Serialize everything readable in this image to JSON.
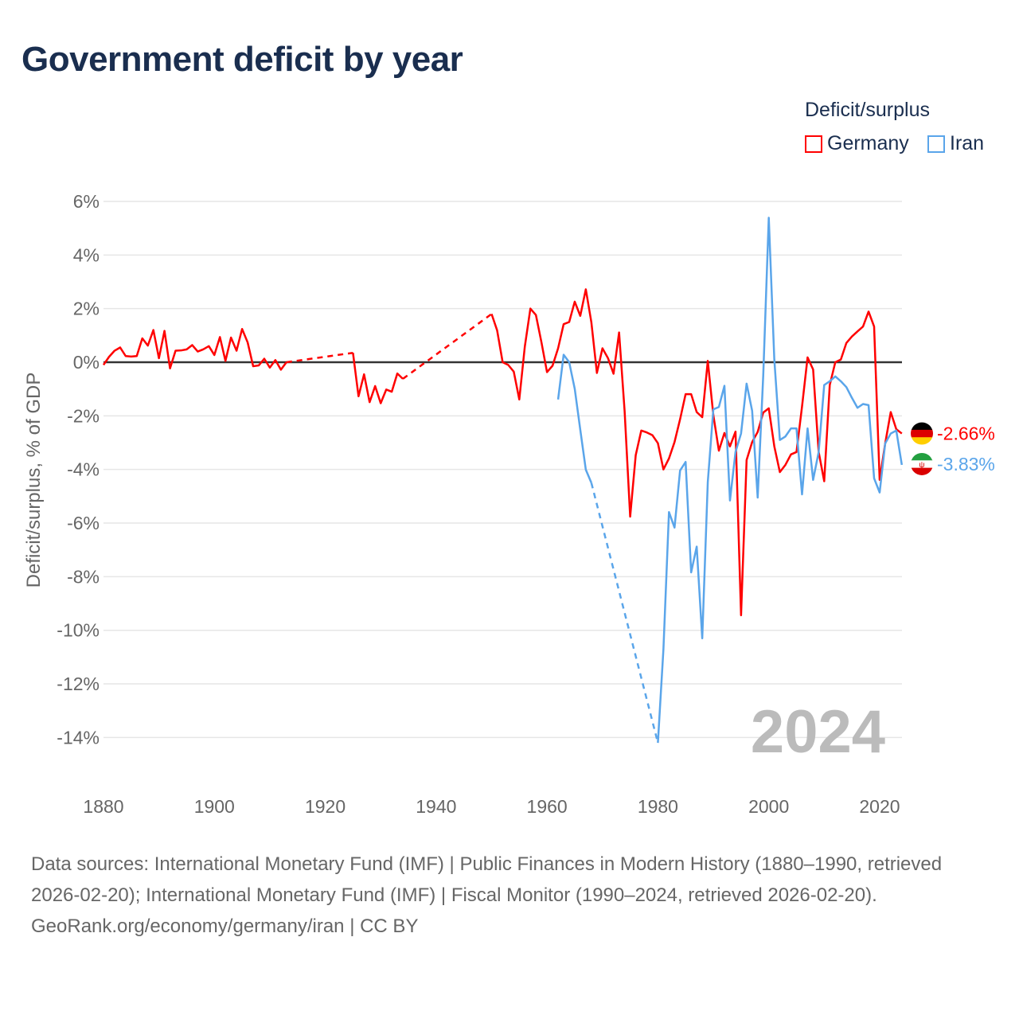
{
  "title": "Government deficit by year",
  "legend": {
    "title": "Deficit/surplus",
    "items": [
      {
        "name": "Germany",
        "color": "#ff0000"
      },
      {
        "name": "Iran",
        "color": "#5aa5ea"
      }
    ]
  },
  "watermark_year": "2024",
  "footer": {
    "sources": "Data sources: International Monetary Fund (IMF) | Public Finances in Modern History (1880–1990, retrieved 2026-02-20); International Monetary Fund (IMF) | Fiscal Monitor (1990–2024, retrieved 2026-02-20).",
    "credit": "GeoRank.org/economy/germany/iran | CC BY"
  },
  "chart_data": {
    "type": "line",
    "title": "Government deficit by year",
    "xlabel": "",
    "ylabel": "Deficit/surplus, % of GDP",
    "xlim": [
      1880,
      2024
    ],
    "ylim": [
      -14,
      6
    ],
    "x_ticks": [
      1880,
      1900,
      1920,
      1940,
      1960,
      1980,
      2000,
      2020
    ],
    "x_tick_labels": [
      "1880",
      "1900",
      "1920",
      "1940",
      "1960",
      "1980",
      "2000",
      "2020"
    ],
    "y_ticks": [
      6,
      4,
      2,
      0,
      -2,
      -4,
      -6,
      -8,
      -10,
      -12,
      -14
    ],
    "y_tick_labels": [
      "6%",
      "4%",
      "2%",
      "0%",
      "-2%",
      "-4%",
      "-6%",
      "-8%",
      "-10%",
      "-12%",
      "-14%"
    ],
    "grid": true,
    "legend_position": "top-right",
    "series": [
      {
        "name": "Germany",
        "color": "#ff0000",
        "end_label": "-2.66%",
        "points": [
          [
            1880,
            -0.1
          ],
          [
            1881,
            0.2
          ],
          [
            1882,
            0.43
          ],
          [
            1883,
            0.55
          ],
          [
            1884,
            0.23
          ],
          [
            1885,
            0.21
          ],
          [
            1886,
            0.23
          ],
          [
            1887,
            0.89
          ],
          [
            1888,
            0.62
          ],
          [
            1889,
            1.2
          ],
          [
            1890,
            0.15
          ],
          [
            1891,
            1.17
          ],
          [
            1892,
            -0.23
          ],
          [
            1893,
            0.43
          ],
          [
            1894,
            0.44
          ],
          [
            1895,
            0.48
          ],
          [
            1896,
            0.64
          ],
          [
            1897,
            0.4
          ],
          [
            1898,
            0.48
          ],
          [
            1899,
            0.6
          ],
          [
            1900,
            0.27
          ],
          [
            1901,
            0.94
          ],
          [
            1902,
            0.05
          ],
          [
            1903,
            0.92
          ],
          [
            1904,
            0.43
          ],
          [
            1905,
            1.24
          ],
          [
            1906,
            0.74
          ],
          [
            1907,
            -0.15
          ],
          [
            1908,
            -0.12
          ],
          [
            1909,
            0.13
          ],
          [
            1910,
            -0.2
          ],
          [
            1911,
            0.08
          ],
          [
            1912,
            -0.28
          ],
          [
            1913,
            0.0
          ],
          [
            1925,
            0.35
          ],
          [
            1926,
            -1.27
          ],
          [
            1927,
            -0.45
          ],
          [
            1928,
            -1.49
          ],
          [
            1929,
            -0.89
          ],
          [
            1930,
            -1.53
          ],
          [
            1931,
            -1.02
          ],
          [
            1932,
            -1.1
          ],
          [
            1933,
            -0.42
          ],
          [
            1934,
            -0.62
          ],
          [
            1950,
            1.8
          ],
          [
            1951,
            1.19
          ],
          [
            1952,
            0.0
          ],
          [
            1953,
            -0.1
          ],
          [
            1954,
            -0.35
          ],
          [
            1955,
            -1.39
          ],
          [
            1956,
            0.59
          ],
          [
            1957,
            2.0
          ],
          [
            1958,
            1.76
          ],
          [
            1959,
            0.74
          ],
          [
            1960,
            -0.37
          ],
          [
            1961,
            -0.13
          ],
          [
            1962,
            0.52
          ],
          [
            1963,
            1.42
          ],
          [
            1964,
            1.5
          ],
          [
            1965,
            2.26
          ],
          [
            1966,
            1.73
          ],
          [
            1967,
            2.72
          ],
          [
            1968,
            1.49
          ],
          [
            1969,
            -0.4
          ],
          [
            1970,
            0.52
          ],
          [
            1971,
            0.15
          ],
          [
            1972,
            -0.43
          ],
          [
            1973,
            1.11
          ],
          [
            1974,
            -1.83
          ],
          [
            1975,
            -5.76
          ],
          [
            1976,
            -3.47
          ],
          [
            1977,
            -2.55
          ],
          [
            1978,
            -2.62
          ],
          [
            1979,
            -2.72
          ],
          [
            1980,
            -3.02
          ],
          [
            1981,
            -4.0
          ],
          [
            1982,
            -3.59
          ],
          [
            1983,
            -2.98
          ],
          [
            1984,
            -2.13
          ],
          [
            1985,
            -1.19
          ],
          [
            1986,
            -1.19
          ],
          [
            1987,
            -1.86
          ],
          [
            1988,
            -2.05
          ],
          [
            1989,
            0.05
          ],
          [
            1990,
            -1.97
          ],
          [
            1991,
            -3.3
          ],
          [
            1992,
            -2.64
          ],
          [
            1993,
            -3.14
          ],
          [
            1994,
            -2.59
          ],
          [
            1995,
            -9.44
          ],
          [
            1996,
            -3.65
          ],
          [
            1997,
            -2.98
          ],
          [
            1998,
            -2.6
          ],
          [
            1999,
            -1.88
          ],
          [
            2000,
            -1.72
          ],
          [
            2001,
            -3.14
          ],
          [
            2002,
            -4.1
          ],
          [
            2003,
            -3.83
          ],
          [
            2004,
            -3.44
          ],
          [
            2005,
            -3.35
          ],
          [
            2006,
            -1.65
          ],
          [
            2007,
            0.18
          ],
          [
            2008,
            -0.27
          ],
          [
            2009,
            -3.35
          ],
          [
            2010,
            -4.44
          ],
          [
            2011,
            -0.85
          ],
          [
            2012,
            0.0
          ],
          [
            2013,
            0.1
          ],
          [
            2014,
            0.72
          ],
          [
            2015,
            0.96
          ],
          [
            2016,
            1.15
          ],
          [
            2017,
            1.33
          ],
          [
            2018,
            1.89
          ],
          [
            2019,
            1.33
          ],
          [
            2020,
            -4.39
          ],
          [
            2021,
            -3.03
          ],
          [
            2022,
            -1.86
          ],
          [
            2023,
            -2.5
          ],
          [
            2024,
            -2.66
          ]
        ]
      },
      {
        "name": "Iran",
        "color": "#5aa5ea",
        "end_label": "-3.83%",
        "points": [
          [
            1962,
            -1.39
          ],
          [
            1963,
            0.28
          ],
          [
            1964,
            0.0
          ],
          [
            1965,
            -0.99
          ],
          [
            1966,
            -2.52
          ],
          [
            1967,
            -4.01
          ],
          [
            1968,
            -4.5
          ],
          [
            1980,
            -14.2
          ],
          [
            1981,
            -10.7
          ],
          [
            1982,
            -5.59
          ],
          [
            1983,
            -6.17
          ],
          [
            1984,
            -4.04
          ],
          [
            1985,
            -3.72
          ],
          [
            1986,
            -7.84
          ],
          [
            1987,
            -6.88
          ],
          [
            1988,
            -10.3
          ],
          [
            1989,
            -4.47
          ],
          [
            1990,
            -1.76
          ],
          [
            1991,
            -1.67
          ],
          [
            1992,
            -0.88
          ],
          [
            1993,
            -5.16
          ],
          [
            1994,
            -3.35
          ],
          [
            1995,
            -2.66
          ],
          [
            1996,
            -0.8
          ],
          [
            1997,
            -1.81
          ],
          [
            1998,
            -5.05
          ],
          [
            1999,
            -0.5
          ],
          [
            2000,
            5.39
          ],
          [
            2001,
            0.1
          ],
          [
            2002,
            -2.9
          ],
          [
            2003,
            -2.77
          ],
          [
            2004,
            -2.47
          ],
          [
            2005,
            -2.47
          ],
          [
            2006,
            -4.93
          ],
          [
            2007,
            -2.47
          ],
          [
            2008,
            -4.39
          ],
          [
            2009,
            -3.35
          ],
          [
            2010,
            -0.85
          ],
          [
            2011,
            -0.71
          ],
          [
            2012,
            -0.53
          ],
          [
            2013,
            -0.71
          ],
          [
            2014,
            -0.93
          ],
          [
            2015,
            -1.33
          ],
          [
            2016,
            -1.7
          ],
          [
            2017,
            -1.56
          ],
          [
            2018,
            -1.6
          ],
          [
            2019,
            -4.33
          ],
          [
            2020,
            -4.86
          ],
          [
            2021,
            -3.03
          ],
          [
            2022,
            -2.66
          ],
          [
            2023,
            -2.55
          ],
          [
            2024,
            -3.83
          ]
        ]
      }
    ]
  }
}
